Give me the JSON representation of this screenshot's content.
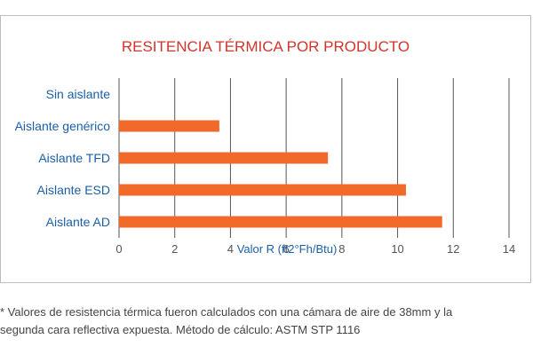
{
  "chart_data": {
    "type": "bar",
    "orientation": "horizontal",
    "title": "RESITENCIA TÉRMICA POR PRODUCTO",
    "xlabel": "Valor R (ft2°Fh/Btu)",
    "ylabel": "",
    "categories": [
      "Sin aislante",
      "Aislante genérico",
      "Aislante TFD",
      "Aislante ESD",
      "Aislante AD"
    ],
    "values": [
      0,
      3.6,
      7.5,
      10.3,
      11.6
    ],
    "xlim": [
      0,
      14
    ],
    "xticks": [
      "0",
      "2",
      "4",
      "6",
      "8",
      "10",
      "12",
      "14"
    ],
    "grid": "vertical",
    "legend": "none",
    "colors": {
      "bar": "#f26a2a",
      "title": "#d0352b",
      "category_label": "#1b5fa8",
      "axis_label": "#1b5fa8",
      "tick_label": "#555555",
      "grid": "#555555"
    }
  },
  "footnote": {
    "line1": "* Valores de resistencia térmica fueron calculados con una cámara de aire de 38mm y la",
    "line2": "segunda cara reflectiva expuesta. Método de cálculo: ASTM STP 1116"
  }
}
